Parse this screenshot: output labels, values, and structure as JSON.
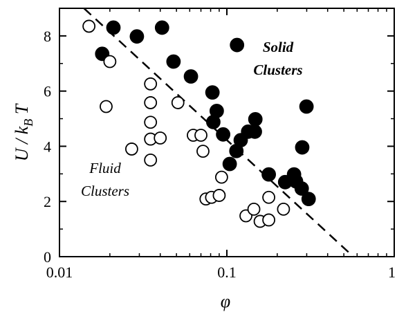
{
  "chart_data": {
    "type": "scatter",
    "title": "",
    "xlabel": "φ",
    "ylabel": "U / k_B T",
    "xscale": "log",
    "xlim": [
      0.01,
      1
    ],
    "ylim": [
      0,
      9
    ],
    "x_ticks": [
      {
        "value": 0.01,
        "label": "0.01"
      },
      {
        "value": 0.1,
        "label": "0.1"
      },
      {
        "value": 1,
        "label": "1"
      }
    ],
    "y_ticks": [
      {
        "value": 0,
        "label": "0"
      },
      {
        "value": 2,
        "label": "2"
      },
      {
        "value": 4,
        "label": "4"
      },
      {
        "value": 6,
        "label": "6"
      },
      {
        "value": 8,
        "label": "8"
      }
    ],
    "grid": false,
    "series": [
      {
        "name": "Solid Clusters",
        "marker": "filled-circle",
        "color": "#000000",
        "points": [
          [
            0.018,
            7.35
          ],
          [
            0.021,
            8.3
          ],
          [
            0.029,
            7.98
          ],
          [
            0.041,
            8.3
          ],
          [
            0.048,
            7.07
          ],
          [
            0.061,
            6.53
          ],
          [
            0.082,
            5.95
          ],
          [
            0.087,
            5.28
          ],
          [
            0.083,
            4.88
          ],
          [
            0.095,
            4.43
          ],
          [
            0.104,
            3.36
          ],
          [
            0.115,
            7.67
          ],
          [
            0.114,
            3.83
          ],
          [
            0.121,
            4.22
          ],
          [
            0.134,
            4.53
          ],
          [
            0.148,
            4.98
          ],
          [
            0.147,
            4.53
          ],
          [
            0.178,
            2.98
          ],
          [
            0.223,
            2.7
          ],
          [
            0.252,
            2.98
          ],
          [
            0.259,
            2.73
          ],
          [
            0.28,
            2.47
          ],
          [
            0.308,
            2.09
          ],
          [
            0.282,
            3.96
          ],
          [
            0.299,
            5.44
          ]
        ]
      },
      {
        "name": "Fluid Clusters",
        "marker": "open-circle",
        "color": "#000000",
        "points": [
          [
            0.015,
            8.35
          ],
          [
            0.02,
            7.07
          ],
          [
            0.019,
            5.44
          ],
          [
            0.027,
            3.9
          ],
          [
            0.035,
            6.26
          ],
          [
            0.035,
            5.58
          ],
          [
            0.035,
            4.87
          ],
          [
            0.035,
            4.26
          ],
          [
            0.035,
            3.5
          ],
          [
            0.04,
            4.3
          ],
          [
            0.051,
            5.58
          ],
          [
            0.063,
            4.4
          ],
          [
            0.07,
            4.4
          ],
          [
            0.072,
            3.82
          ],
          [
            0.075,
            2.09
          ],
          [
            0.081,
            2.15
          ],
          [
            0.09,
            2.22
          ],
          [
            0.093,
            2.88
          ],
          [
            0.13,
            1.48
          ],
          [
            0.145,
            1.72
          ],
          [
            0.158,
            1.28
          ],
          [
            0.178,
            1.33
          ],
          [
            0.178,
            2.15
          ],
          [
            0.218,
            1.72
          ]
        ]
      }
    ],
    "fit_line": {
      "style": "dashed",
      "points": [
        [
          0.014,
          9.0
        ],
        [
          0.57,
          0.0
        ]
      ]
    },
    "annotations": [
      {
        "id": "solid",
        "line1": "Solid",
        "line2": "Clusters",
        "bold": true
      },
      {
        "id": "fluid",
        "line1": "Fluid",
        "line2": "Clusters",
        "bold": false
      }
    ]
  }
}
